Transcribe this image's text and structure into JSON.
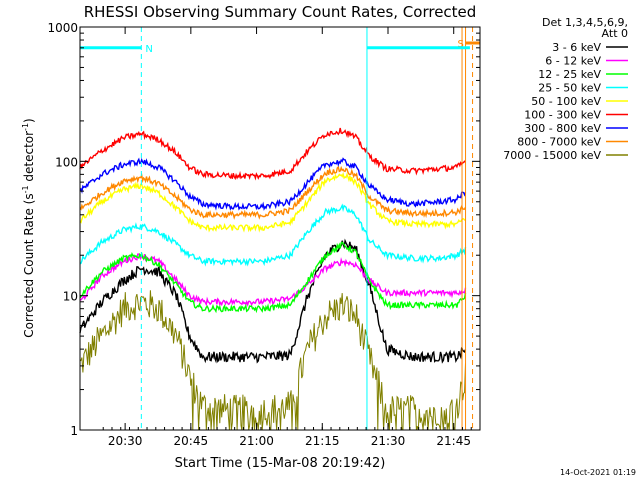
{
  "title": "RHESSI Observing Summary Count Rates, Corrected",
  "timestamp": "14-Oct-2021 01:19",
  "chart_data": {
    "type": "line",
    "title": "RHESSI Observing Summary Count Rates, Corrected",
    "xlabel": "Start Time (15-Mar-08 20:19:42)",
    "ylabel_main": "Corrected Count Rate (s",
    "ylabel_sup1": "-1",
    "ylabel_mid": " detector",
    "ylabel_sup2": "-1",
    "ylabel_end": ")",
    "x_unit": "minutes after 20:19:42",
    "xlim": [
      0,
      91.3
    ],
    "ylim": [
      1,
      1000
    ],
    "yscale": "log",
    "grid": false,
    "legend_placement": "right",
    "x_ticks": [
      {
        "value": 10.3,
        "label": "20:30"
      },
      {
        "value": 25.3,
        "label": "20:45"
      },
      {
        "value": 40.3,
        "label": "21:00"
      },
      {
        "value": 55.3,
        "label": "21:15"
      },
      {
        "value": 70.3,
        "label": "21:30"
      },
      {
        "value": 85.3,
        "label": "21:45"
      }
    ],
    "y_ticks": [
      {
        "value": 1,
        "label": "1"
      },
      {
        "value": 10,
        "label": "10"
      },
      {
        "value": 100,
        "label": "100"
      },
      {
        "value": 1000,
        "label": "1000"
      }
    ],
    "legend_header": [
      "Det 1,3,4,5,6,9,",
      "Att 0"
    ],
    "series": [
      {
        "name": "3 - 6 keV",
        "color": "#000000",
        "x": [
          0,
          5,
          10,
          14,
          18,
          22,
          25,
          28,
          35,
          42,
          48,
          52,
          56,
          60,
          63,
          66,
          70,
          76,
          82,
          86,
          88
        ],
        "values": [
          5.5,
          9,
          13,
          16,
          15,
          10,
          5,
          3.5,
          3.5,
          3.5,
          3.6,
          10,
          20,
          25,
          22,
          12,
          4,
          3.5,
          3.5,
          3.5,
          4
        ]
      },
      {
        "name": "6 - 12 keV",
        "color": "#ff00ff",
        "x": [
          0,
          5,
          10,
          14,
          18,
          22,
          25,
          28,
          35,
          42,
          48,
          52,
          56,
          60,
          63,
          66,
          70,
          76,
          82,
          86,
          88
        ],
        "values": [
          9,
          14,
          18,
          20,
          18,
          13,
          10,
          9,
          9,
          9,
          9.5,
          12,
          16,
          18,
          17,
          13,
          10.5,
          10.5,
          10.5,
          10.5,
          11
        ]
      },
      {
        "name": "12 - 25 keV",
        "color": "#00ff00",
        "x": [
          0,
          5,
          10,
          14,
          18,
          22,
          25,
          28,
          35,
          42,
          48,
          52,
          56,
          60,
          63,
          66,
          70,
          76,
          82,
          86,
          88
        ],
        "values": [
          10,
          15,
          19,
          20,
          17,
          12,
          9,
          8,
          8,
          8,
          8.5,
          13,
          20,
          24,
          21,
          13,
          8.5,
          8.5,
          8.5,
          8.5,
          10
        ]
      },
      {
        "name": "25 - 50 keV",
        "color": "#00ffff",
        "x": [
          0,
          5,
          10,
          14,
          18,
          22,
          25,
          28,
          35,
          42,
          48,
          52,
          56,
          60,
          63,
          66,
          70,
          76,
          82,
          86,
          88
        ],
        "values": [
          18,
          25,
          31,
          33,
          30,
          24,
          20,
          18,
          18,
          18,
          20,
          30,
          42,
          45,
          40,
          26,
          20,
          19,
          19,
          20,
          22
        ]
      },
      {
        "name": "50 - 100 keV",
        "color": "#ffff00",
        "x": [
          0,
          5,
          10,
          14,
          18,
          22,
          25,
          28,
          35,
          42,
          48,
          52,
          56,
          60,
          63,
          66,
          70,
          76,
          82,
          86,
          88
        ],
        "values": [
          36,
          50,
          62,
          66,
          58,
          45,
          36,
          32,
          32,
          32,
          35,
          50,
          72,
          80,
          70,
          48,
          36,
          34,
          34,
          34,
          38
        ]
      },
      {
        "name": "100 - 300 keV",
        "color": "#ff0000",
        "x": [
          0,
          5,
          10,
          14,
          18,
          22,
          25,
          28,
          35,
          42,
          48,
          52,
          56,
          60,
          63,
          66,
          70,
          76,
          82,
          86,
          88
        ],
        "values": [
          90,
          120,
          150,
          160,
          145,
          115,
          90,
          80,
          78,
          78,
          85,
          120,
          160,
          170,
          150,
          110,
          88,
          85,
          88,
          90,
          100
        ]
      },
      {
        "name": "300 - 800 keV",
        "color": "#0000ff",
        "x": [
          0,
          5,
          10,
          14,
          18,
          22,
          25,
          28,
          35,
          42,
          48,
          52,
          56,
          60,
          63,
          66,
          70,
          76,
          82,
          86,
          88
        ],
        "values": [
          60,
          80,
          95,
          100,
          90,
          70,
          55,
          48,
          46,
          46,
          50,
          70,
          95,
          100,
          90,
          66,
          52,
          48,
          50,
          52,
          60
        ]
      },
      {
        "name": "800 - 7000 keV",
        "color": "#ff8800",
        "x": [
          0,
          5,
          10,
          14,
          18,
          22,
          25,
          28,
          35,
          42,
          48,
          52,
          56,
          60,
          63,
          66,
          70,
          76,
          82,
          86,
          88
        ],
        "values": [
          44,
          58,
          72,
          76,
          68,
          54,
          44,
          40,
          40,
          40,
          43,
          60,
          82,
          88,
          78,
          55,
          43,
          41,
          41,
          42,
          46
        ]
      },
      {
        "name": "7000 - 15000 keV",
        "color": "#808000",
        "x": [
          0,
          5,
          10,
          14,
          18,
          22,
          25,
          28,
          35,
          42,
          48,
          52,
          56,
          60,
          63,
          66,
          70,
          76,
          82,
          86,
          88
        ],
        "values": [
          3,
          5,
          8,
          9,
          8,
          5,
          2.5,
          1.5,
          1.4,
          1.4,
          1.5,
          4,
          7,
          8.5,
          7,
          3.5,
          1.4,
          1.4,
          1.4,
          1.5,
          2.5
        ]
      }
    ],
    "annotations": [
      {
        "label": "N",
        "color": "#00ffff",
        "bar_from": 0,
        "bar_to": 14,
        "edge": 14,
        "value": 700
      },
      {
        "label": "S",
        "color": "#ff8800",
        "bar_from": 88,
        "bar_to": 91.3,
        "edge": 88,
        "value": 760
      }
    ],
    "cyan_bar_right": {
      "from": 65.5,
      "to": 89,
      "value": 700,
      "color": "#00ffff"
    },
    "vertical_markers": [
      {
        "x": 14,
        "color": "#00ffff",
        "style": "dashed"
      },
      {
        "x": 65.5,
        "color": "#00ffff",
        "style": "solid"
      },
      {
        "x": 87.2,
        "color": "#ff8800",
        "style": "solid"
      },
      {
        "x": 88.0,
        "color": "#ff8800",
        "style": "solid"
      },
      {
        "x": 89.6,
        "color": "#ff8800",
        "style": "dashed"
      }
    ]
  }
}
